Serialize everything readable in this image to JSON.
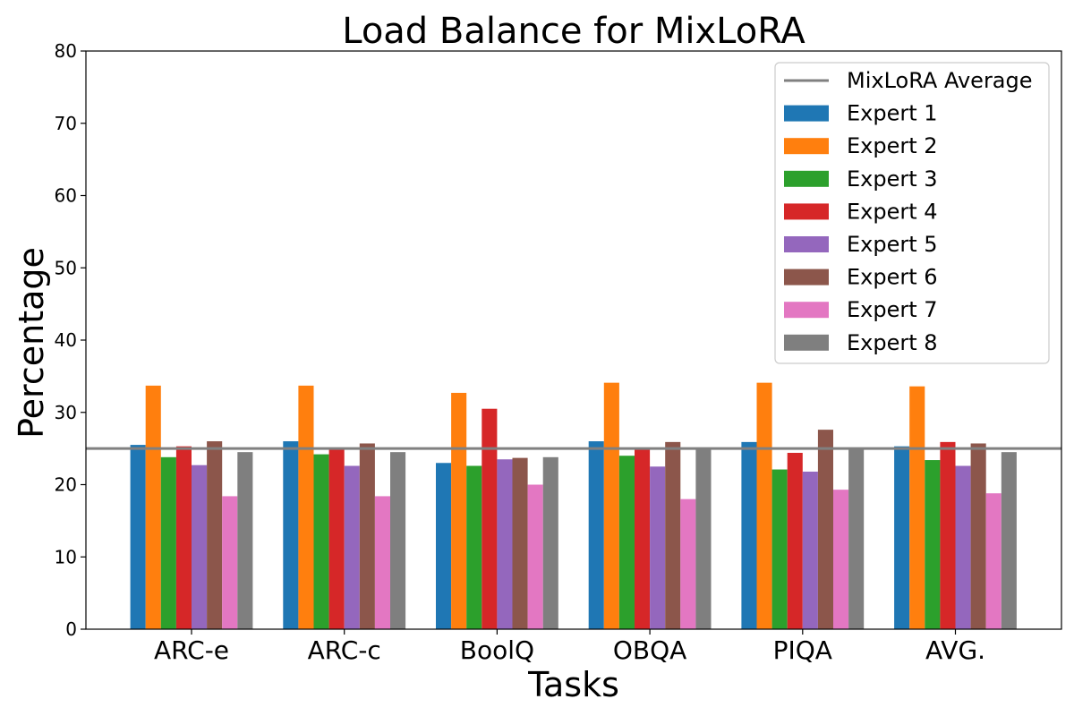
{
  "chart_data": {
    "type": "bar",
    "title": "Load Balance for MixLoRA",
    "xlabel": "Tasks",
    "ylabel": "Percentage",
    "ylim": [
      0,
      80
    ],
    "yticks": [
      0,
      10,
      20,
      30,
      40,
      50,
      60,
      70,
      80
    ],
    "categories": [
      "ARC-e",
      "ARC-c",
      "BoolQ",
      "OBQA",
      "PIQA",
      "AVG."
    ],
    "series": [
      {
        "name": "Expert 1",
        "color": "#1f77b4",
        "values": [
          25.5,
          26.0,
          23.0,
          26.0,
          25.9,
          25.3
        ]
      },
      {
        "name": "Expert 2",
        "color": "#ff7f0e",
        "values": [
          33.7,
          33.7,
          32.7,
          34.1,
          34.1,
          33.6
        ]
      },
      {
        "name": "Expert 3",
        "color": "#2ca02c",
        "values": [
          23.8,
          24.2,
          22.6,
          24.0,
          22.1,
          23.4
        ]
      },
      {
        "name": "Expert 4",
        "color": "#d62728",
        "values": [
          25.3,
          24.9,
          30.5,
          24.9,
          24.4,
          25.9
        ]
      },
      {
        "name": "Expert 5",
        "color": "#9467bd",
        "values": [
          22.7,
          22.6,
          23.5,
          22.5,
          21.8,
          22.6
        ]
      },
      {
        "name": "Expert 6",
        "color": "#8c564b",
        "values": [
          26.0,
          25.7,
          23.7,
          25.9,
          27.6,
          25.7
        ]
      },
      {
        "name": "Expert 7",
        "color": "#e377c2",
        "values": [
          18.4,
          18.4,
          20.0,
          18.0,
          19.3,
          18.8
        ]
      },
      {
        "name": "Expert 8",
        "color": "#7f7f7f",
        "values": [
          24.5,
          24.5,
          23.8,
          25.0,
          25.0,
          24.5
        ]
      }
    ],
    "reference_line": {
      "name": "MixLoRA Average",
      "value": 25.0,
      "color": "#808080"
    },
    "legend_position": "top-right",
    "grid": false
  }
}
